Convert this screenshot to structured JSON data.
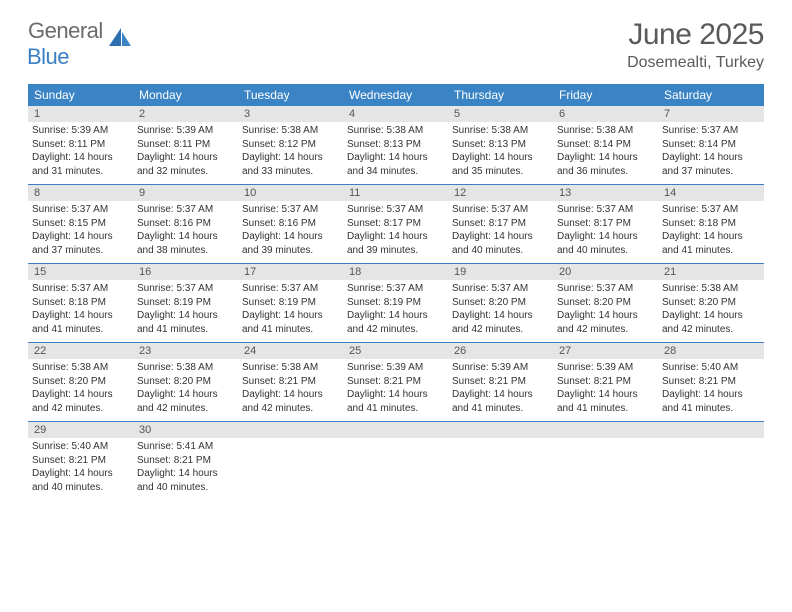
{
  "logo": {
    "general": "General",
    "blue": "Blue"
  },
  "title": "June 2025",
  "location": "Dosemealti, Turkey",
  "colors": {
    "header_bar": "#3a84c5",
    "day_num_bg": "#e5e5e5",
    "row_divider": "#3a7fc4",
    "text": "#333333",
    "title_text": "#5a5a5a"
  },
  "days_of_week": [
    "Sunday",
    "Monday",
    "Tuesday",
    "Wednesday",
    "Thursday",
    "Friday",
    "Saturday"
  ],
  "weeks": [
    [
      {
        "n": "1",
        "sr": "5:39 AM",
        "ss": "8:11 PM",
        "dl": "14 hours and 31 minutes."
      },
      {
        "n": "2",
        "sr": "5:39 AM",
        "ss": "8:11 PM",
        "dl": "14 hours and 32 minutes."
      },
      {
        "n": "3",
        "sr": "5:38 AM",
        "ss": "8:12 PM",
        "dl": "14 hours and 33 minutes."
      },
      {
        "n": "4",
        "sr": "5:38 AM",
        "ss": "8:13 PM",
        "dl": "14 hours and 34 minutes."
      },
      {
        "n": "5",
        "sr": "5:38 AM",
        "ss": "8:13 PM",
        "dl": "14 hours and 35 minutes."
      },
      {
        "n": "6",
        "sr": "5:38 AM",
        "ss": "8:14 PM",
        "dl": "14 hours and 36 minutes."
      },
      {
        "n": "7",
        "sr": "5:37 AM",
        "ss": "8:14 PM",
        "dl": "14 hours and 37 minutes."
      }
    ],
    [
      {
        "n": "8",
        "sr": "5:37 AM",
        "ss": "8:15 PM",
        "dl": "14 hours and 37 minutes."
      },
      {
        "n": "9",
        "sr": "5:37 AM",
        "ss": "8:16 PM",
        "dl": "14 hours and 38 minutes."
      },
      {
        "n": "10",
        "sr": "5:37 AM",
        "ss": "8:16 PM",
        "dl": "14 hours and 39 minutes."
      },
      {
        "n": "11",
        "sr": "5:37 AM",
        "ss": "8:17 PM",
        "dl": "14 hours and 39 minutes."
      },
      {
        "n": "12",
        "sr": "5:37 AM",
        "ss": "8:17 PM",
        "dl": "14 hours and 40 minutes."
      },
      {
        "n": "13",
        "sr": "5:37 AM",
        "ss": "8:17 PM",
        "dl": "14 hours and 40 minutes."
      },
      {
        "n": "14",
        "sr": "5:37 AM",
        "ss": "8:18 PM",
        "dl": "14 hours and 41 minutes."
      }
    ],
    [
      {
        "n": "15",
        "sr": "5:37 AM",
        "ss": "8:18 PM",
        "dl": "14 hours and 41 minutes."
      },
      {
        "n": "16",
        "sr": "5:37 AM",
        "ss": "8:19 PM",
        "dl": "14 hours and 41 minutes."
      },
      {
        "n": "17",
        "sr": "5:37 AM",
        "ss": "8:19 PM",
        "dl": "14 hours and 41 minutes."
      },
      {
        "n": "18",
        "sr": "5:37 AM",
        "ss": "8:19 PM",
        "dl": "14 hours and 42 minutes."
      },
      {
        "n": "19",
        "sr": "5:37 AM",
        "ss": "8:20 PM",
        "dl": "14 hours and 42 minutes."
      },
      {
        "n": "20",
        "sr": "5:37 AM",
        "ss": "8:20 PM",
        "dl": "14 hours and 42 minutes."
      },
      {
        "n": "21",
        "sr": "5:38 AM",
        "ss": "8:20 PM",
        "dl": "14 hours and 42 minutes."
      }
    ],
    [
      {
        "n": "22",
        "sr": "5:38 AM",
        "ss": "8:20 PM",
        "dl": "14 hours and 42 minutes."
      },
      {
        "n": "23",
        "sr": "5:38 AM",
        "ss": "8:20 PM",
        "dl": "14 hours and 42 minutes."
      },
      {
        "n": "24",
        "sr": "5:38 AM",
        "ss": "8:21 PM",
        "dl": "14 hours and 42 minutes."
      },
      {
        "n": "25",
        "sr": "5:39 AM",
        "ss": "8:21 PM",
        "dl": "14 hours and 41 minutes."
      },
      {
        "n": "26",
        "sr": "5:39 AM",
        "ss": "8:21 PM",
        "dl": "14 hours and 41 minutes."
      },
      {
        "n": "27",
        "sr": "5:39 AM",
        "ss": "8:21 PM",
        "dl": "14 hours and 41 minutes."
      },
      {
        "n": "28",
        "sr": "5:40 AM",
        "ss": "8:21 PM",
        "dl": "14 hours and 41 minutes."
      }
    ],
    [
      {
        "n": "29",
        "sr": "5:40 AM",
        "ss": "8:21 PM",
        "dl": "14 hours and 40 minutes."
      },
      {
        "n": "30",
        "sr": "5:41 AM",
        "ss": "8:21 PM",
        "dl": "14 hours and 40 minutes."
      },
      null,
      null,
      null,
      null,
      null
    ]
  ],
  "labels": {
    "sunrise": "Sunrise: ",
    "sunset": "Sunset: ",
    "daylight": "Daylight: "
  }
}
